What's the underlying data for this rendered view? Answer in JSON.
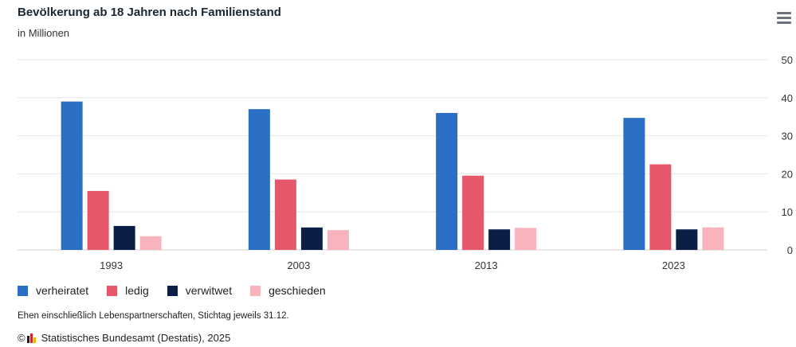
{
  "title": "Bevölkerung ab 18 Jahren nach Familienstand",
  "subtitle": "in Millionen",
  "menu_icon": "hamburger-menu-icon",
  "note": "Ehen einschließlich Lebenspartnerschaften, Stichtag jeweils 31.12.",
  "credit": {
    "copyright_symbol": "©",
    "logo_icon": "destatis-logo-icon",
    "text": "Statistisches Bundesamt (Destatis), 2025"
  },
  "colors": {
    "verheiratet": "#2a6fc4",
    "ledig": "#e6576c",
    "verwitwet": "#0b1f46",
    "geschieden": "#f8b3bd",
    "grid": "#e6e6e6"
  },
  "chart_data": {
    "type": "bar",
    "categories": [
      "1993",
      "2003",
      "2013",
      "2023"
    ],
    "series": [
      {
        "name": "verheiratet",
        "values": [
          39.0,
          37.0,
          36.0,
          34.7
        ]
      },
      {
        "name": "ledig",
        "values": [
          15.5,
          18.5,
          19.5,
          22.5
        ]
      },
      {
        "name": "verwitwet",
        "values": [
          6.3,
          5.9,
          5.4,
          5.4
        ]
      },
      {
        "name": "geschieden",
        "values": [
          3.6,
          5.2,
          5.8,
          5.9
        ]
      }
    ],
    "yticks": [
      "0",
      "10",
      "20",
      "30",
      "40",
      "50"
    ],
    "ylim": [
      0,
      50
    ],
    "y_axis_side": "right",
    "grid": true,
    "legend_position": "bottom-left"
  }
}
